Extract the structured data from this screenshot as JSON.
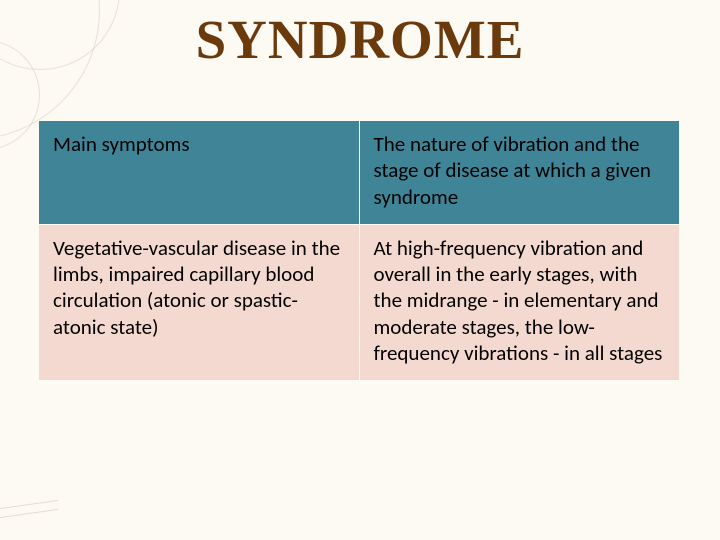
{
  "slide": {
    "title": "SYNDROME",
    "title_color": "#6b3a0c",
    "title_font_family": "Comic Sans MS",
    "title_fontsize_pt": 41,
    "background_color": "#fdf9f3",
    "decorative_circles_color": "rgba(200,180,150,0.35)"
  },
  "syndrome_table": {
    "type": "table",
    "columns": [
      "Main symptoms",
      "The nature of vibration and the stage of disease at which a given syndrome"
    ],
    "rows": [
      [
        "Vegetative-vascular disease in the limbs, impaired capillary blood circulation (atonic or spastic-atonic state)",
        "At high-frequency vibration and overall in the early stages, with the midrange - in elementary and moderate stages, the low-frequency vibrations - in all stages"
      ]
    ],
    "header_bg": "#3f8597",
    "header_text_color": "#ffffff",
    "body_bg": "#f3d9cf",
    "body_text_color": "#000000",
    "border_color": "#fdf9f3",
    "cell_fontsize_pt": 16,
    "column_widths_pct": [
      50,
      50
    ]
  }
}
